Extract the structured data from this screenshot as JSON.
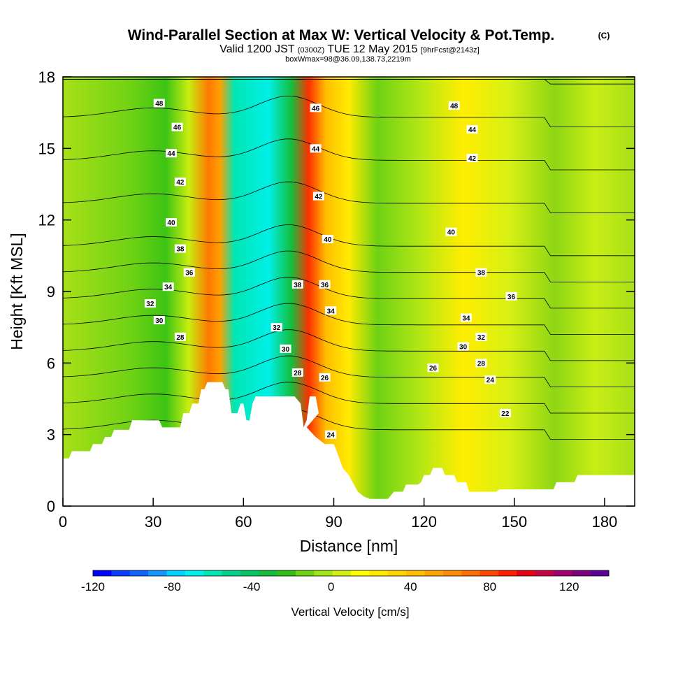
{
  "header": {
    "title": "Wind-Parallel Section at Max W: Vertical Velocity & Pot.Temp.",
    "copyright": "(C)",
    "valid_prefix": "Valid 1200 JST",
    "valid_utc": "(0300Z)",
    "valid_date": "TUE 12 May 2015",
    "forecast": "[9hrFcst@2143z]",
    "box_info": "boxWmax=98@36.09,138.73,2219m"
  },
  "chart_data": {
    "type": "heatmap",
    "xlabel": "Distance [nm]",
    "ylabel": "Height [Kft MSL]",
    "xlim": [
      0,
      190
    ],
    "ylim": [
      0,
      18
    ],
    "xticks": [
      0,
      30,
      60,
      90,
      120,
      150,
      180
    ],
    "yticks": [
      0,
      3,
      6,
      9,
      12,
      15,
      18
    ],
    "colorbar": {
      "label": "Vertical Velocity [cm/s]",
      "range": [
        -120,
        140
      ],
      "tick_values": [
        -120,
        -80,
        -40,
        0,
        40,
        80,
        120
      ],
      "tick_labels": [
        "-120",
        "-80",
        "-40",
        "0",
        "40",
        "80",
        "120"
      ],
      "colors": [
        "#0000ff",
        "#0a3cff",
        "#0f64ff",
        "#1496ff",
        "#00d2ff",
        "#00f0f0",
        "#00e6b4",
        "#00d28c",
        "#00c864",
        "#14be3c",
        "#32be14",
        "#6ed214",
        "#a0e614",
        "#d2f014",
        "#ffff00",
        "#ffeb00",
        "#ffd200",
        "#ffbe00",
        "#ffa500",
        "#ff8c00",
        "#ff6e00",
        "#ff4600",
        "#ff1e00",
        "#e60014",
        "#c80046",
        "#a0006e",
        "#7d007d",
        "#5a0096"
      ]
    },
    "terrain": [
      [
        0,
        2
      ],
      [
        2,
        2
      ],
      [
        3,
        2.3
      ],
      [
        9,
        2.3
      ],
      [
        10,
        2.6
      ],
      [
        13,
        2.6
      ],
      [
        14,
        2.9
      ],
      [
        16,
        2.9
      ],
      [
        17,
        3.2
      ],
      [
        22,
        3.2
      ],
      [
        23,
        3.6
      ],
      [
        32,
        3.6
      ],
      [
        33,
        3.3
      ],
      [
        39,
        3.3
      ],
      [
        40,
        3.9
      ],
      [
        42,
        3.9
      ],
      [
        43,
        4.3
      ],
      [
        45,
        4.3
      ],
      [
        46,
        4.9
      ],
      [
        47,
        4.9
      ],
      [
        48,
        5.2
      ],
      [
        53,
        5.2
      ],
      [
        54,
        4.9
      ],
      [
        55,
        4.9
      ],
      [
        56,
        3.9
      ],
      [
        58,
        3.9
      ],
      [
        59,
        4.3
      ],
      [
        60,
        4.3
      ],
      [
        61,
        3.6
      ],
      [
        62,
        3.6
      ],
      [
        63,
        4.3
      ],
      [
        64,
        4.6
      ],
      [
        77,
        4.6
      ],
      [
        79,
        4.3
      ],
      [
        80,
        3.3
      ],
      [
        81,
        3.6
      ],
      [
        82,
        4.6
      ],
      [
        84,
        4.6
      ],
      [
        85,
        3.9
      ],
      [
        81,
        3.3
      ],
      [
        84,
        2.9
      ],
      [
        87,
        2.6
      ],
      [
        90,
        2.6
      ],
      [
        91,
        2.3
      ],
      [
        93,
        1.6
      ],
      [
        95,
        1.3
      ],
      [
        98,
        0.6
      ],
      [
        100,
        0.4
      ],
      [
        102,
        0.3
      ],
      [
        108,
        0.3
      ],
      [
        110,
        0.6
      ],
      [
        113,
        0.6
      ],
      [
        114,
        0.9
      ],
      [
        118,
        0.9
      ],
      [
        119,
        1.0
      ],
      [
        120,
        1.3
      ],
      [
        122,
        1.3
      ],
      [
        123,
        1.6
      ],
      [
        126,
        1.6
      ],
      [
        127,
        1.3
      ],
      [
        130,
        1.3
      ],
      [
        131,
        1.0
      ],
      [
        134,
        1.0
      ],
      [
        135,
        0.6
      ],
      [
        144,
        0.6
      ],
      [
        145,
        0.7
      ],
      [
        163,
        0.7
      ],
      [
        164,
        1.0
      ],
      [
        170,
        1.0
      ],
      [
        171,
        1.3
      ],
      [
        190,
        1.3
      ]
    ],
    "contour_labels": [
      {
        "text": "48",
        "x": 32,
        "y": 16.9
      },
      {
        "text": "46",
        "x": 38,
        "y": 15.9
      },
      {
        "text": "44",
        "x": 36,
        "y": 14.8
      },
      {
        "text": "42",
        "x": 39,
        "y": 13.6
      },
      {
        "text": "40",
        "x": 36,
        "y": 11.9
      },
      {
        "text": "38",
        "x": 39,
        "y": 10.8
      },
      {
        "text": "36",
        "x": 42,
        "y": 9.8
      },
      {
        "text": "34",
        "x": 35,
        "y": 9.2
      },
      {
        "text": "32",
        "x": 29,
        "y": 8.5
      },
      {
        "text": "30",
        "x": 32,
        "y": 7.8
      },
      {
        "text": "28",
        "x": 39,
        "y": 7.1
      },
      {
        "text": "46",
        "x": 84,
        "y": 16.7
      },
      {
        "text": "44",
        "x": 84,
        "y": 15.0
      },
      {
        "text": "42",
        "x": 85,
        "y": 13.0
      },
      {
        "text": "40",
        "x": 88,
        "y": 11.2
      },
      {
        "text": "38",
        "x": 78,
        "y": 9.3
      },
      {
        "text": "36",
        "x": 87,
        "y": 9.3
      },
      {
        "text": "34",
        "x": 89,
        "y": 8.2
      },
      {
        "text": "32",
        "x": 71,
        "y": 7.5
      },
      {
        "text": "30",
        "x": 74,
        "y": 6.6
      },
      {
        "text": "28",
        "x": 78,
        "y": 5.6
      },
      {
        "text": "26",
        "x": 87,
        "y": 5.4
      },
      {
        "text": "24",
        "x": 89,
        "y": 3.0
      },
      {
        "text": "48",
        "x": 130,
        "y": 16.8
      },
      {
        "text": "44",
        "x": 136,
        "y": 15.8
      },
      {
        "text": "42",
        "x": 136,
        "y": 14.6
      },
      {
        "text": "40",
        "x": 129,
        "y": 11.5
      },
      {
        "text": "38",
        "x": 139,
        "y": 9.8
      },
      {
        "text": "36",
        "x": 149,
        "y": 8.8
      },
      {
        "text": "34",
        "x": 134,
        "y": 7.9
      },
      {
        "text": "32",
        "x": 139,
        "y": 7.1
      },
      {
        "text": "30",
        "x": 133,
        "y": 6.7
      },
      {
        "text": "28",
        "x": 139,
        "y": 6.0
      },
      {
        "text": "26",
        "x": 123,
        "y": 5.8
      },
      {
        "text": "24",
        "x": 142,
        "y": 5.3
      },
      {
        "text": "22",
        "x": 147,
        "y": 3.9
      }
    ]
  }
}
